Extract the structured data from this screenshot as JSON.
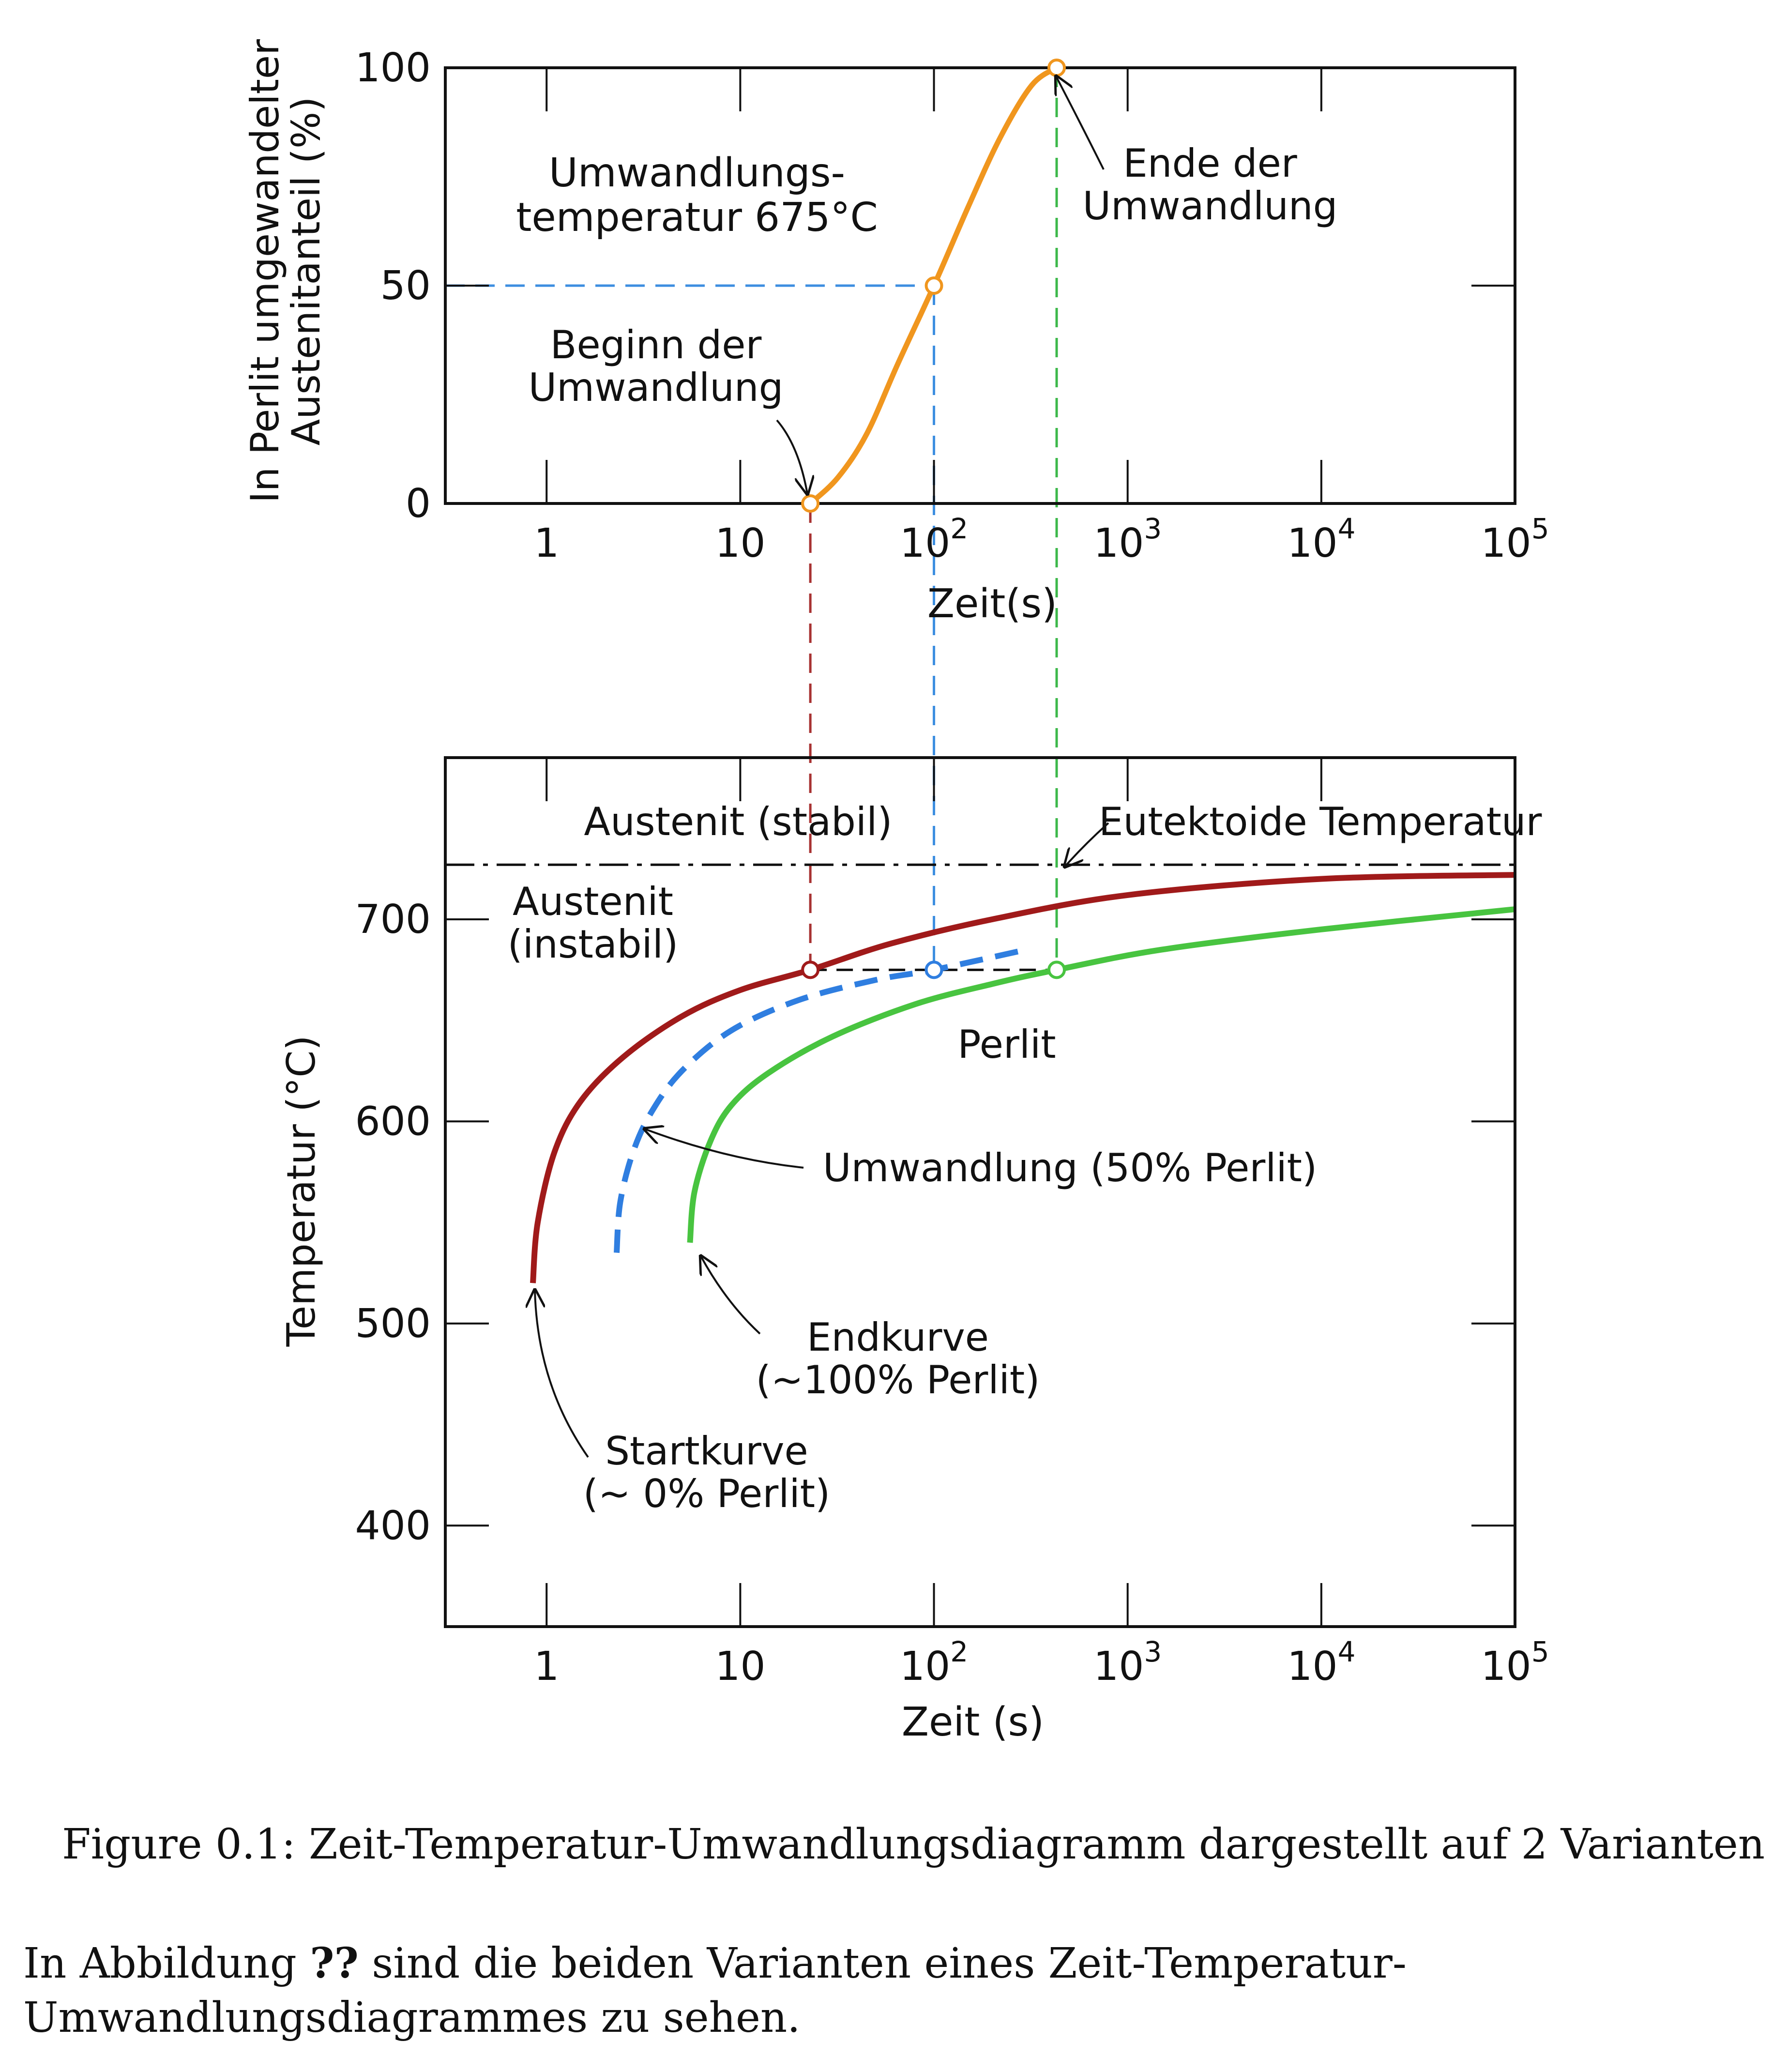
{
  "chart_data": [
    {
      "type": "line",
      "xscale": "log",
      "xlim": [
        0.3,
        100000
      ],
      "ylim": [
        0,
        100
      ],
      "xticks": [
        1,
        10,
        100,
        1000,
        10000,
        100000
      ],
      "xtick_labels": [
        "1",
        "10",
        "10",
        "10",
        "10",
        "10"
      ],
      "xtick_exponents": [
        "",
        "",
        "2",
        "3",
        "4",
        "5"
      ],
      "yticks": [
        0,
        50,
        100
      ],
      "ytick_labels": [
        "0",
        "50",
        "100"
      ],
      "xlabel": "Zeit(s)",
      "ylabel_lines": [
        "In Perlit umgewandelter",
        "Austenitanteil (%)"
      ],
      "series": [
        {
          "color": "#f0961e",
          "x": [
            23,
            32,
            45,
            65,
            100,
            150,
            220,
            320,
            430
          ],
          "y": [
            0,
            6,
            16,
            32,
            50,
            68,
            84,
            96,
            100
          ]
        }
      ],
      "markers": [
        {
          "x": 23,
          "y": 0
        },
        {
          "x": 100,
          "y": 50
        },
        {
          "x": 430,
          "y": 100
        }
      ],
      "annotations": [
        {
          "lines": [
            "Umwandlungs-",
            "temperatur 675°C"
          ]
        },
        {
          "lines": [
            "Beginn der",
            "Umwandlung"
          ]
        },
        {
          "lines": [
            "Ende der",
            "Umwandlung"
          ]
        }
      ]
    },
    {
      "type": "line",
      "xscale": "log",
      "xlim": [
        0.3,
        100000
      ],
      "ylim": [
        350,
        780
      ],
      "xticks": [
        1,
        10,
        100,
        1000,
        10000,
        100000
      ],
      "xtick_labels": [
        "1",
        "10",
        "10",
        "10",
        "10",
        "10"
      ],
      "xtick_exponents": [
        "",
        "",
        "2",
        "3",
        "4",
        "5"
      ],
      "yticks": [
        400,
        500,
        600,
        700
      ],
      "ytick_labels": [
        "400",
        "500",
        "600",
        "700"
      ],
      "xlabel": "Zeit (s)",
      "ylabel": "Temperatur (°C)",
      "eutectoid_temperature": 727,
      "series": [
        {
          "color": "#a01a1a",
          "dashed": false,
          "x": [
            0.85,
            0.9,
            1.1,
            1.5,
            2.5,
            5,
            10,
            23,
            60,
            200,
            1000,
            10000,
            100000
          ],
          "y": [
            520,
            550,
            585,
            610,
            632,
            652,
            665,
            675,
            688,
            700,
            712,
            720,
            722
          ]
        },
        {
          "color": "#2f7ee0",
          "dashed": true,
          "x": [
            2.3,
            2.4,
            2.8,
            3.5,
            5,
            9,
            20,
            50,
            100,
            300
          ],
          "y": [
            535,
            560,
            585,
            605,
            625,
            645,
            660,
            670,
            675,
            685
          ]
        },
        {
          "color": "#48c440",
          "dashed": false,
          "x": [
            5.5,
            5.8,
            7,
            9,
            14,
            30,
            80,
            200,
            430,
            1500,
            10000,
            100000
          ],
          "y": [
            540,
            565,
            590,
            608,
            624,
            642,
            658,
            668,
            675,
            685,
            695,
            705
          ]
        }
      ],
      "markers": [
        {
          "x": 23,
          "y": 675,
          "color": "#a01a1a"
        },
        {
          "x": 100,
          "y": 675,
          "color": "#2f7ee0"
        },
        {
          "x": 430,
          "y": 675,
          "color": "#48c440"
        }
      ],
      "annotations": [
        {
          "lines": [
            "Austenit (stabil)"
          ]
        },
        {
          "lines": [
            "Eutektoide Temperatur"
          ]
        },
        {
          "lines": [
            "Austenit",
            "(instabil)"
          ]
        },
        {
          "lines": [
            "Perlit"
          ]
        },
        {
          "lines": [
            "Umwandlung (50% Perlit)"
          ]
        },
        {
          "lines": [
            "Endkurve",
            "(~100% Perlit)"
          ]
        },
        {
          "lines": [
            "Startkurve",
            "(~ 0% Perlit)"
          ]
        }
      ]
    }
  ],
  "caption": "Figure 0.1: Zeit-Temperatur-Umwandlungsdiagramm dargestellt auf 2 Varianten",
  "paragraph": {
    "before": "In Abbildung ",
    "ref": "??",
    "after": " sind die beiden Varianten eines Zeit-Temperatur-Umwandlungsdiagrammes zu sehen."
  }
}
